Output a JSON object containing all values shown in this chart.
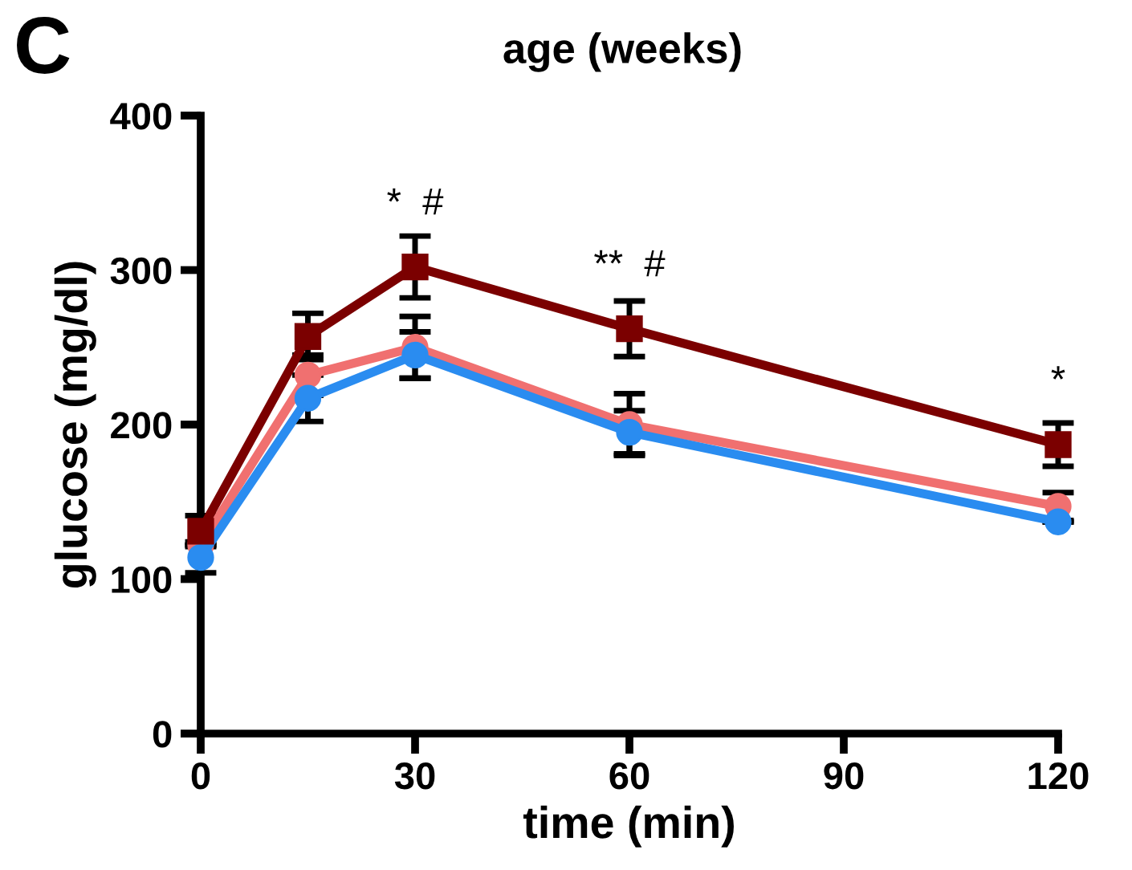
{
  "chart_data": {
    "type": "line",
    "title": "age (weeks)",
    "xlabel": "time (min)",
    "ylabel": "glucose (mg/dl)",
    "x": [
      0,
      15,
      30,
      60,
      120
    ],
    "series": [
      {
        "color": "#f07070",
        "marker": "circle",
        "values": [
          122,
          232,
          250,
          200,
          147
        ],
        "errors": [
          null,
          13,
          20,
          20,
          9
        ]
      },
      {
        "color": "#2a8cf0",
        "marker": "circle",
        "values": [
          114,
          217,
          245,
          195,
          137
        ],
        "errors": [
          10,
          15,
          15,
          14,
          null
        ]
      },
      {
        "color": "#7b0000",
        "marker": "square",
        "values": [
          131,
          257,
          302,
          262,
          187
        ],
        "errors": [
          10,
          15,
          20,
          18,
          14
        ]
      }
    ],
    "xlim": [
      0,
      120
    ],
    "xticks": [
      0,
      30,
      60,
      90,
      120
    ],
    "ylim": [
      0,
      400
    ],
    "yticks": [
      0,
      100,
      200,
      300,
      400
    ],
    "grid": false,
    "legend": false,
    "line_style": "solid",
    "annotations": [
      "C",
      {
        "text": "*  #",
        "x": 30,
        "y": 302
      },
      {
        "text": "**  #",
        "x": 60,
        "y": 262
      },
      {
        "text": "*",
        "x": 120,
        "y": 187
      }
    ]
  }
}
